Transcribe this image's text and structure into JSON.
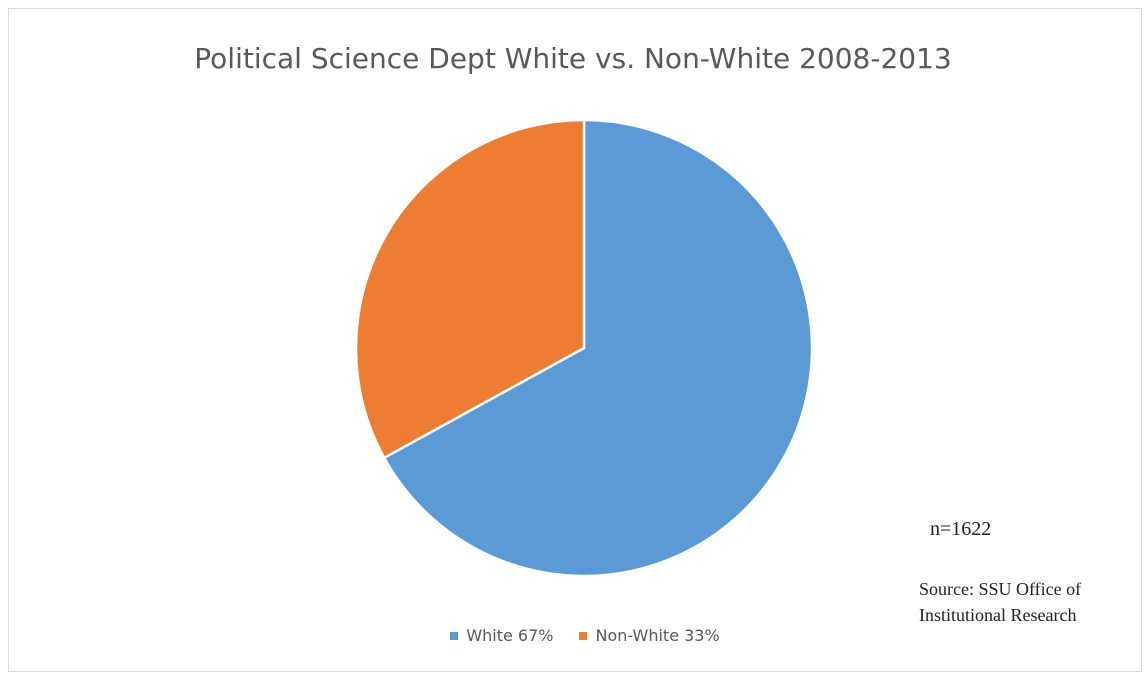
{
  "chart_data": {
    "type": "pie",
    "title": "Political Science Dept White vs. Non-White 2008-2013",
    "categories": [
      "White",
      "Non-White"
    ],
    "values": [
      67,
      33
    ],
    "legend_labels": [
      "White 67%",
      "Non-White 33%"
    ],
    "colors": [
      "#5b9bd5",
      "#ed7d31"
    ],
    "legend_position": "bottom",
    "start_angle": "12 o'clock, clockwise"
  },
  "notes": {
    "n_label": "n=1622",
    "source": "Source: SSU Office of Institutional Research"
  }
}
